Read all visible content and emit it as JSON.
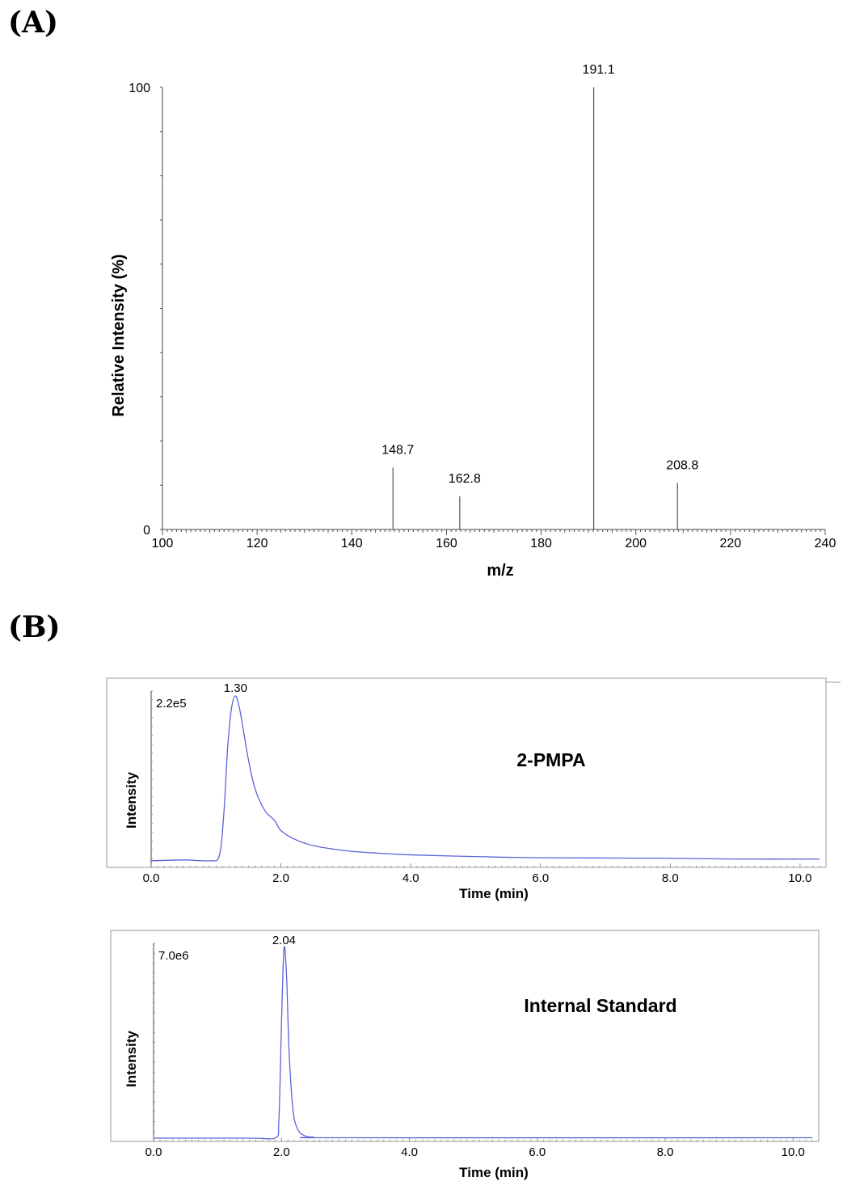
{
  "panels": {
    "a_label": "(A)",
    "b_label": "(B)"
  },
  "chart_data": [
    {
      "type": "bar",
      "subtype": "mass-spectrum",
      "xlabel": "m/z",
      "ylabel": "Relative  Intensity (%)",
      "xlim": [
        100,
        240
      ],
      "ylim": [
        0,
        100
      ],
      "x_ticks": [
        "100",
        "120",
        "140",
        "160",
        "180",
        "200",
        "220",
        "240"
      ],
      "y_ticks": [
        "0",
        "100"
      ],
      "peaks": [
        {
          "x": 148.7,
          "y": 14,
          "label": "148.7"
        },
        {
          "x": 162.8,
          "y": 7.5,
          "label": "162.8"
        },
        {
          "x": 191.1,
          "y": 100,
          "label": "191.1"
        },
        {
          "x": 208.8,
          "y": 10.5,
          "label": "208.8"
        }
      ]
    },
    {
      "type": "line",
      "subtype": "chromatogram",
      "name": "2-PMPA",
      "xlabel": "Time (min)",
      "ylabel": "Intensity",
      "xlim": [
        0,
        10.3
      ],
      "x_ticks": [
        "0.0",
        "2.0",
        "4.0",
        "6.0",
        "8.0",
        "10.0"
      ],
      "max_intensity": "2.2e5",
      "peak_label": "1.30",
      "color": "#5b63d8",
      "x": [
        0.0,
        0.5,
        0.9,
        1.05,
        1.12,
        1.18,
        1.24,
        1.3,
        1.36,
        1.42,
        1.5,
        1.6,
        1.75,
        1.9,
        2.0,
        2.2,
        2.5,
        3.0,
        3.5,
        4.0,
        5.0,
        6.0,
        8.0,
        9.0,
        10.3
      ],
      "y": [
        0.02,
        0.025,
        0.02,
        0.05,
        0.3,
        0.7,
        0.93,
        1.0,
        0.93,
        0.8,
        0.62,
        0.45,
        0.32,
        0.26,
        0.2,
        0.15,
        0.11,
        0.08,
        0.065,
        0.055,
        0.045,
        0.038,
        0.035,
        0.03,
        0.03
      ]
    },
    {
      "type": "line",
      "subtype": "chromatogram",
      "name": "Internal Standard",
      "xlabel": "Time (min)",
      "ylabel": "Intensity",
      "xlim": [
        0,
        10.3
      ],
      "x_ticks": [
        "0.0",
        "2.0",
        "4.0",
        "6.0",
        "8.0",
        "10.0"
      ],
      "max_intensity": "7.0e6",
      "peak_label": "2.04",
      "color": "#5b63d8",
      "x": [
        0.0,
        1.5,
        1.9,
        1.96,
        2.0,
        2.04,
        2.08,
        2.12,
        2.18,
        2.25,
        2.35,
        2.5,
        3.0,
        10.3
      ],
      "y": [
        0.0,
        0.0,
        0.0,
        0.1,
        0.6,
        1.0,
        0.85,
        0.45,
        0.15,
        0.05,
        0.015,
        0.005,
        0.002,
        0.002
      ]
    }
  ]
}
